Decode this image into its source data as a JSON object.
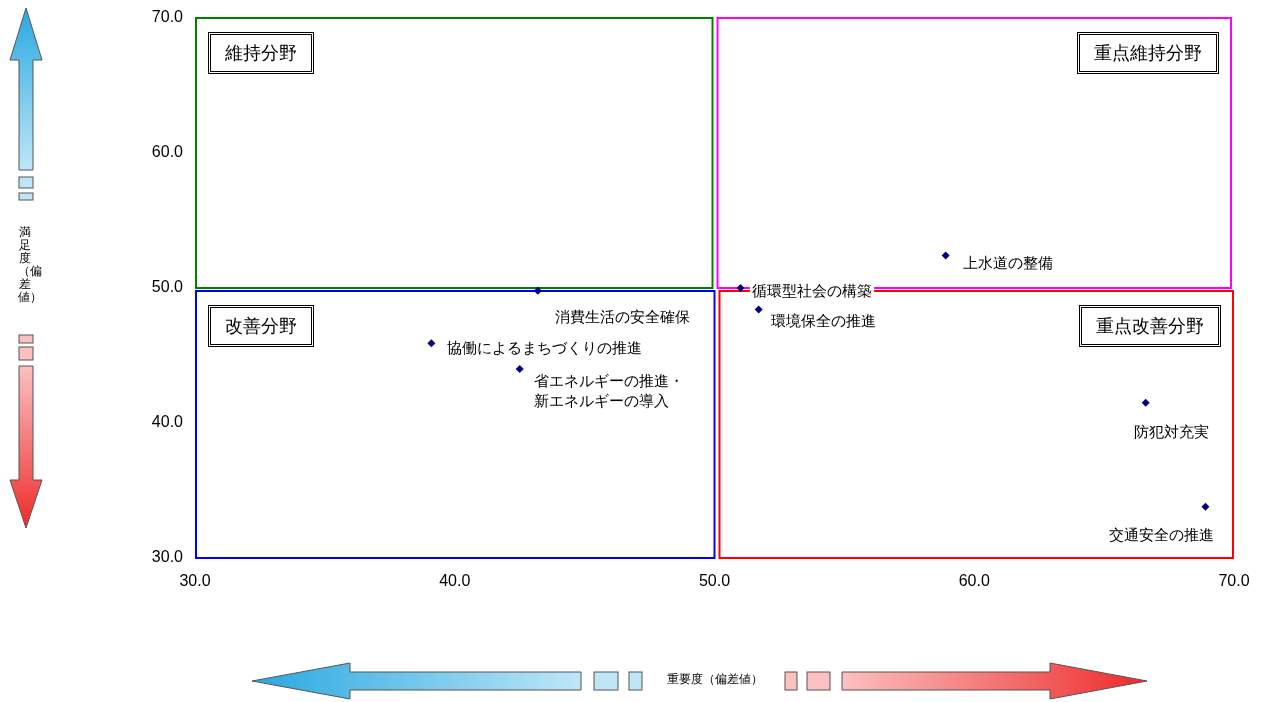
{
  "chart_data": {
    "type": "scatter",
    "xlim": [
      30,
      70
    ],
    "ylim": [
      30,
      70
    ],
    "xticks": [
      {
        "value": 30,
        "label": "30.0"
      },
      {
        "value": 40,
        "label": "40.0"
      },
      {
        "value": 50,
        "label": "50.0"
      },
      {
        "value": 60,
        "label": "60.0"
      },
      {
        "value": 70,
        "label": "70.0"
      }
    ],
    "yticks": [
      {
        "value": 30,
        "label": "30.0"
      },
      {
        "value": 40,
        "label": "40.0"
      },
      {
        "value": 50,
        "label": "50.0"
      },
      {
        "value": 60,
        "label": "60.0"
      },
      {
        "value": 70,
        "label": "70.0"
      }
    ],
    "marker": "diamond",
    "annotations": [
      "維持分野",
      "重点維持分野",
      "改善分野",
      "重点改善分野",
      "重要度（偏差値）",
      "満足度（偏差値）"
    ],
    "series": [
      {
        "name": "上水道の整備",
        "color": "#000080",
        "x": [
          58.9
        ],
        "values": [
          52.4
        ]
      },
      {
        "name": "循環型社会の構築",
        "color": "#000080",
        "x": [
          51.0
        ],
        "values": [
          50.0
        ]
      },
      {
        "name": "消費生活の安全確保",
        "color": "#000080",
        "x": [
          43.2
        ],
        "values": [
          49.8
        ]
      },
      {
        "name": "環境保全の推進",
        "color": "#000080",
        "x": [
          51.7
        ],
        "values": [
          48.4
        ]
      },
      {
        "name": "協働によるまちづくりの推進",
        "color": "#000080",
        "x": [
          39.1
        ],
        "values": [
          45.9
        ]
      },
      {
        "name": "省エネルギーの推進・新エネルギーの導入",
        "color": "#000080",
        "x": [
          42.5
        ],
        "values": [
          44.0
        ]
      },
      {
        "name": "防犯対充実",
        "color": "#000080",
        "x": [
          66.6
        ],
        "values": [
          41.5
        ]
      },
      {
        "name": "交通安全の推進",
        "color": "#000080",
        "x": [
          68.9
        ],
        "values": [
          33.8
        ]
      }
    ]
  }
}
